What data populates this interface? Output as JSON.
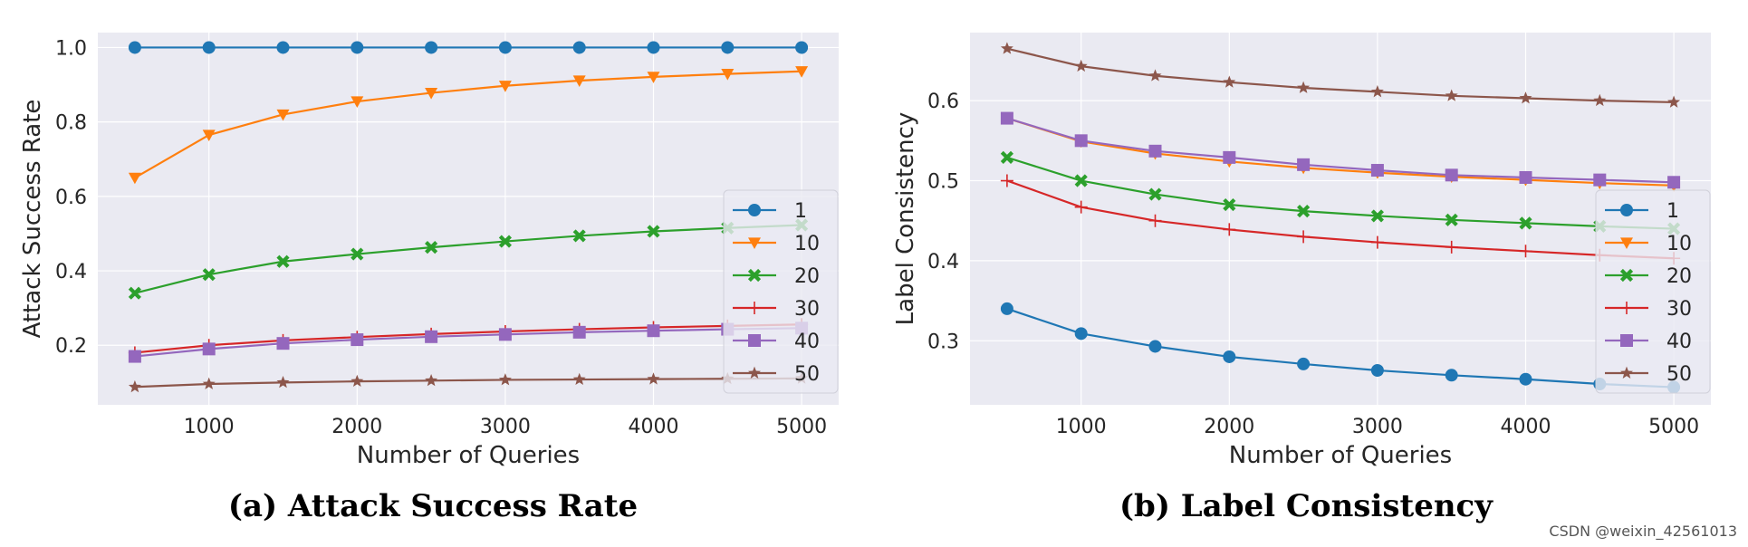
{
  "chart_data": [
    {
      "type": "line",
      "caption": "(a) Attack Success Rate",
      "xlabel": "Number of Queries",
      "ylabel": "Attack Success Rate",
      "x": [
        500,
        1000,
        1500,
        2000,
        2500,
        3000,
        3500,
        4000,
        4500,
        5000
      ],
      "xticks": [
        1000,
        2000,
        3000,
        4000,
        5000
      ],
      "xlim": [
        250,
        5250
      ],
      "yticks": [
        "0.2",
        "0.4",
        "0.6",
        "0.8",
        "1.0"
      ],
      "ylim": [
        0.04,
        1.04
      ],
      "grid": true,
      "legend_loc": "lower-right",
      "series": [
        {
          "name": "1",
          "color": "#1f77b4",
          "marker": "circle",
          "values": [
            1.0,
            1.0,
            1.0,
            1.0,
            1.0,
            1.0,
            1.0,
            1.0,
            1.0,
            1.0
          ]
        },
        {
          "name": "10",
          "color": "#ff7f0e",
          "marker": "triangle-down",
          "values": [
            0.65,
            0.765,
            0.82,
            0.855,
            0.878,
            0.897,
            0.911,
            0.921,
            0.929,
            0.936
          ]
        },
        {
          "name": "20",
          "color": "#2ca02c",
          "marker": "x-filled",
          "values": [
            0.34,
            0.39,
            0.425,
            0.445,
            0.463,
            0.479,
            0.494,
            0.506,
            0.515,
            0.523
          ]
        },
        {
          "name": "30",
          "color": "#d62728",
          "marker": "plus",
          "values": [
            0.18,
            0.2,
            0.213,
            0.222,
            0.23,
            0.237,
            0.243,
            0.248,
            0.252,
            0.256
          ]
        },
        {
          "name": "40",
          "color": "#9467bd",
          "marker": "square",
          "values": [
            0.17,
            0.19,
            0.205,
            0.215,
            0.223,
            0.229,
            0.235,
            0.239,
            0.243,
            0.246
          ]
        },
        {
          "name": "50",
          "color": "#8c564b",
          "marker": "star",
          "values": [
            0.088,
            0.096,
            0.1,
            0.103,
            0.105,
            0.107,
            0.108,
            0.109,
            0.11,
            0.111
          ]
        }
      ]
    },
    {
      "type": "line",
      "caption": "(b) Label Consistency",
      "xlabel": "Number of Queries",
      "ylabel": "Label Consistency",
      "x": [
        500,
        1000,
        1500,
        2000,
        2500,
        3000,
        3500,
        4000,
        4500,
        5000
      ],
      "xticks": [
        1000,
        2000,
        3000,
        4000,
        5000
      ],
      "xlim": [
        250,
        5250
      ],
      "yticks": [
        "0.3",
        "0.4",
        "0.5",
        "0.6"
      ],
      "ylim": [
        0.22,
        0.685
      ],
      "grid": true,
      "legend_loc": "lower-right",
      "series": [
        {
          "name": "1",
          "color": "#1f77b4",
          "marker": "circle",
          "values": [
            0.34,
            0.309,
            0.293,
            0.28,
            0.271,
            0.263,
            0.257,
            0.252,
            0.246,
            0.242
          ]
        },
        {
          "name": "10",
          "color": "#ff7f0e",
          "marker": "triangle-down",
          "values": [
            0.578,
            0.549,
            0.534,
            0.524,
            0.516,
            0.51,
            0.505,
            0.501,
            0.497,
            0.494
          ]
        },
        {
          "name": "20",
          "color": "#2ca02c",
          "marker": "x-filled",
          "values": [
            0.529,
            0.5,
            0.483,
            0.47,
            0.462,
            0.456,
            0.451,
            0.447,
            0.443,
            0.44
          ]
        },
        {
          "name": "30",
          "color": "#d62728",
          "marker": "plus",
          "values": [
            0.5,
            0.467,
            0.45,
            0.439,
            0.43,
            0.423,
            0.417,
            0.412,
            0.407,
            0.403
          ]
        },
        {
          "name": "40",
          "color": "#9467bd",
          "marker": "square",
          "values": [
            0.578,
            0.55,
            0.537,
            0.529,
            0.52,
            0.513,
            0.507,
            0.504,
            0.501,
            0.498
          ]
        },
        {
          "name": "50",
          "color": "#8c564b",
          "marker": "star",
          "values": [
            0.665,
            0.643,
            0.631,
            0.623,
            0.616,
            0.611,
            0.606,
            0.603,
            0.6,
            0.598
          ]
        }
      ]
    }
  ],
  "watermark": "CSDN @weixin_42561013"
}
